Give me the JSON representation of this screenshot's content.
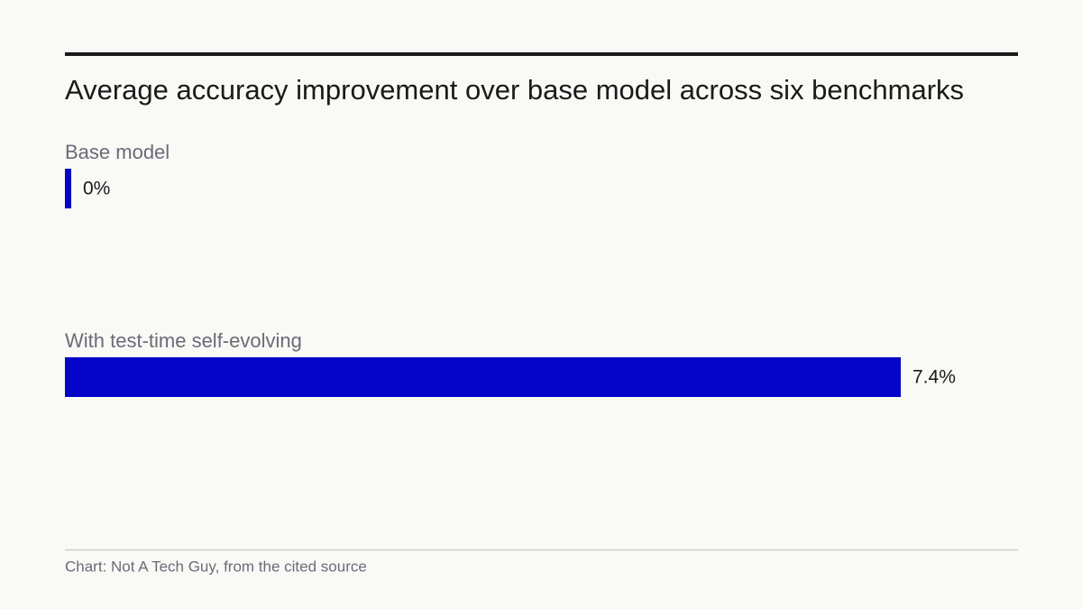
{
  "chart_data": {
    "type": "bar",
    "orientation": "horizontal",
    "title": "Average accuracy improvement over base model across six benchmarks",
    "categories": [
      "Base model",
      "With test-time self-evolving"
    ],
    "values": [
      0,
      7.4
    ],
    "value_labels": [
      "0%",
      "7.4%"
    ],
    "color": "#0505c8",
    "source": "Chart: Not A Tech Guy, from the cited source"
  }
}
